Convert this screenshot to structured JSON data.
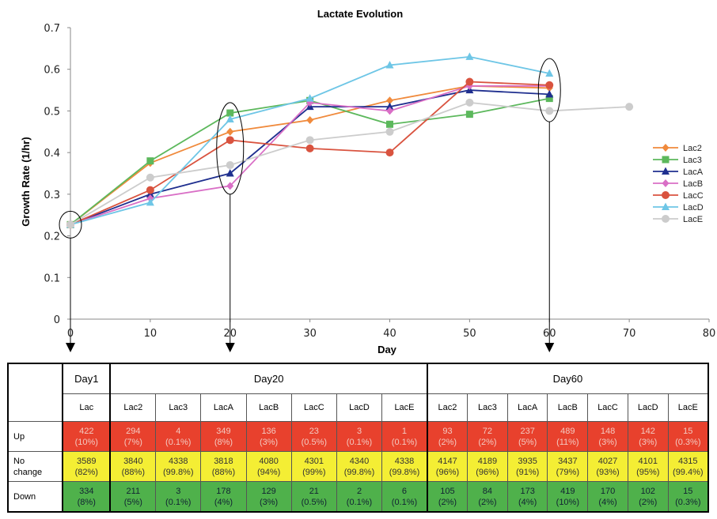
{
  "chart_data": {
    "type": "line",
    "title": "Lactate Evolution",
    "xlabel": "Day",
    "ylabel": "Growth Rate (1/hr)",
    "xlim": [
      0,
      80
    ],
    "ylim": [
      0,
      0.7
    ],
    "x_ticks": [
      "0",
      "10",
      "20",
      "30",
      "40",
      "50",
      "60",
      "70",
      "80"
    ],
    "y_ticks": [
      "0",
      "0.1",
      "0.2",
      "0.3",
      "0.4",
      "0.5",
      "0.6",
      "0.7"
    ],
    "grid": false,
    "legend_position": "right",
    "series": [
      {
        "name": "Lac2",
        "color": "#f08a3c",
        "marker": "diamond",
        "x": [
          0,
          10,
          20,
          30,
          40,
          50,
          60
        ],
        "y": [
          0.227,
          0.375,
          0.45,
          0.478,
          0.525,
          0.56,
          0.555
        ]
      },
      {
        "name": "Lac3",
        "color": "#5cb85c",
        "marker": "square",
        "x": [
          0,
          10,
          20,
          30,
          40,
          50,
          60
        ],
        "y": [
          0.227,
          0.38,
          0.495,
          0.525,
          0.468,
          0.492,
          0.53
        ]
      },
      {
        "name": "LacA",
        "color": "#1f2f8f",
        "marker": "triangle",
        "x": [
          0,
          10,
          20,
          30,
          40,
          50,
          60
        ],
        "y": [
          0.227,
          0.3,
          0.35,
          0.51,
          0.51,
          0.55,
          0.54
        ]
      },
      {
        "name": "LacB",
        "color": "#d96fc6",
        "marker": "diamond",
        "x": [
          0,
          10,
          20,
          30,
          40,
          50,
          60
        ],
        "y": [
          0.227,
          0.29,
          0.32,
          0.52,
          0.5,
          0.56,
          0.56
        ]
      },
      {
        "name": "LacC",
        "color": "#d9533f",
        "marker": "circle",
        "x": [
          0,
          10,
          20,
          30,
          40,
          50,
          60
        ],
        "y": [
          0.227,
          0.31,
          0.43,
          0.41,
          0.4,
          0.57,
          0.562
        ]
      },
      {
        "name": "LacD",
        "color": "#6ec6e6",
        "marker": "triangle",
        "x": [
          0,
          10,
          20,
          30,
          40,
          50,
          60
        ],
        "y": [
          0.227,
          0.28,
          0.48,
          0.53,
          0.61,
          0.63,
          0.59
        ]
      },
      {
        "name": "LacE",
        "color": "#cccccc",
        "marker": "circle",
        "x": [
          0,
          10,
          20,
          30,
          40,
          50,
          60,
          70
        ],
        "y": [
          0.227,
          0.34,
          0.37,
          0.43,
          0.45,
          0.52,
          0.5,
          0.51
        ]
      }
    ],
    "highlight_days": [
      0,
      20,
      60
    ]
  },
  "table": {
    "day_headers": [
      "Day1",
      "Day20",
      "Day60"
    ],
    "strains_day1": [
      "Lac"
    ],
    "strains": [
      "Lac2",
      "Lac3",
      "LacA",
      "LacB",
      "LacC",
      "LacD",
      "LacE"
    ],
    "row_labels": {
      "up": "Up",
      "nochange_1": "No",
      "nochange_2": "change",
      "down": "Down"
    },
    "rows": {
      "up": [
        [
          "422",
          "(10%)"
        ],
        [
          "294",
          "(7%)"
        ],
        [
          "4",
          "(0.1%)"
        ],
        [
          "349",
          "(8%)"
        ],
        [
          "136",
          "(3%)"
        ],
        [
          "23",
          "(0.5%)"
        ],
        [
          "3",
          "(0.1%)"
        ],
        [
          "1",
          "(0.1%)"
        ],
        [
          "93",
          "(2%)"
        ],
        [
          "72",
          "(2%)"
        ],
        [
          "237",
          "(5%)"
        ],
        [
          "489",
          "(11%)"
        ],
        [
          "148",
          "(3%)"
        ],
        [
          "142",
          "(3%)"
        ],
        [
          "15",
          "(0.3%)"
        ]
      ],
      "nochange": [
        [
          "3589",
          "(82%)"
        ],
        [
          "3840",
          "(88%)"
        ],
        [
          "4338",
          "(99.8%)"
        ],
        [
          "3818",
          "(88%)"
        ],
        [
          "4080",
          "(94%)"
        ],
        [
          "4301",
          "(99%)"
        ],
        [
          "4340",
          "(99.8%)"
        ],
        [
          "4338",
          "(99.8%)"
        ],
        [
          "4147",
          "(96%)"
        ],
        [
          "4189",
          "(96%)"
        ],
        [
          "3935",
          "(91%)"
        ],
        [
          "3437",
          "(79%)"
        ],
        [
          "4027",
          "(93%)"
        ],
        [
          "4101",
          "(95%)"
        ],
        [
          "4315",
          "(99.4%)"
        ]
      ],
      "down": [
        [
          "334",
          "(8%)"
        ],
        [
          "211",
          "(5%)"
        ],
        [
          "3",
          "(0.1%)"
        ],
        [
          "178",
          "(4%)"
        ],
        [
          "129",
          "(3%)"
        ],
        [
          "21",
          "(0.5%)"
        ],
        [
          "2",
          "(0.1%)"
        ],
        [
          "6",
          "(0.1%)"
        ],
        [
          "105",
          "(2%)"
        ],
        [
          "84",
          "(2%)"
        ],
        [
          "173",
          "(4%)"
        ],
        [
          "419",
          "(10%)"
        ],
        [
          "170",
          "(4%)"
        ],
        [
          "102",
          "(2%)"
        ],
        [
          "15",
          "(0.3%)"
        ]
      ]
    }
  }
}
